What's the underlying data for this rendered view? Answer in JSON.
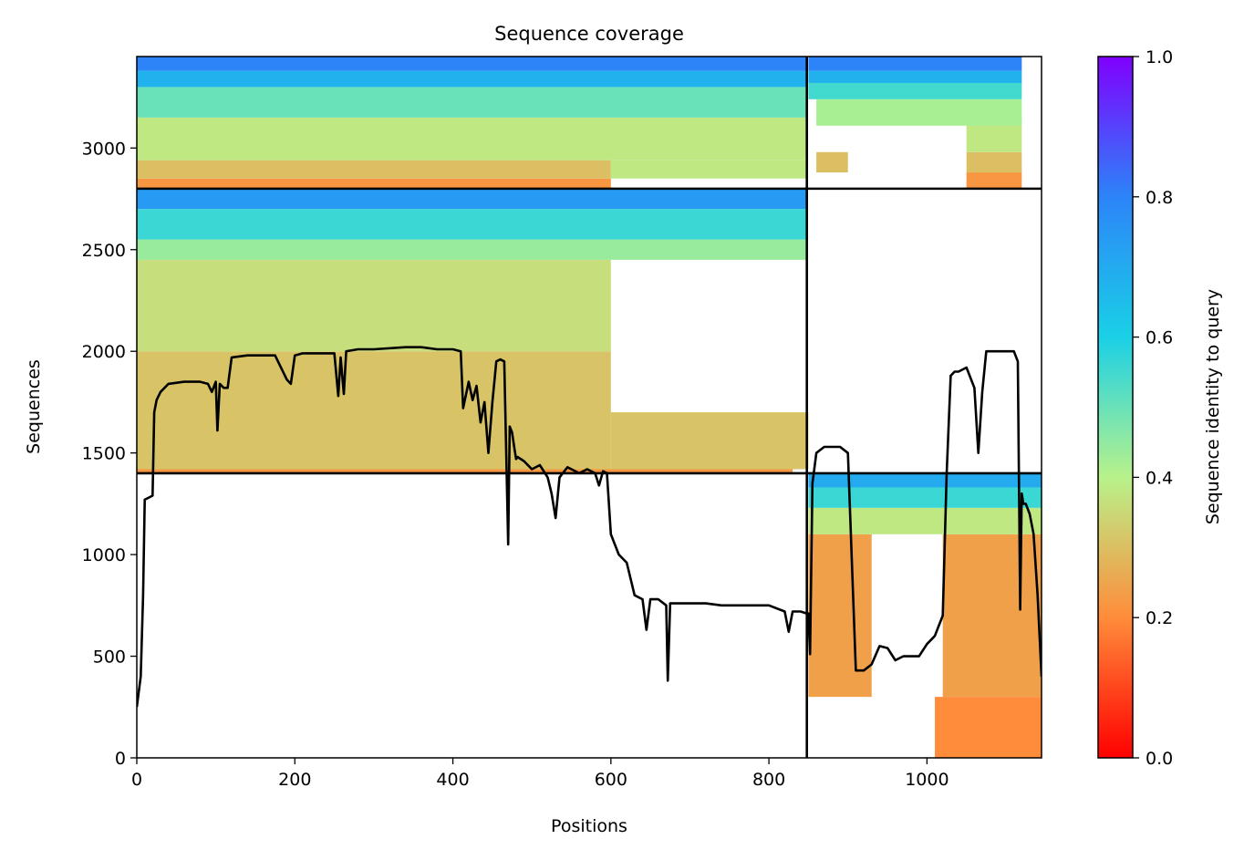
{
  "chart_data": {
    "type": "heatmap",
    "title": "Sequence coverage",
    "xlabel": "Positions",
    "ylabel": "Sequences",
    "xlim": [
      0,
      1145
    ],
    "ylim": [
      0,
      3450
    ],
    "xticks": [
      0,
      200,
      400,
      600,
      800,
      1000
    ],
    "yticks": [
      0,
      500,
      1000,
      1500,
      2000,
      2500,
      3000
    ],
    "grid": false,
    "colorbar": {
      "label": "Sequence identity to query",
      "colormap": "rainbow_r",
      "range": [
        0.0,
        1.0
      ],
      "ticks": [
        0.0,
        0.2,
        0.4,
        0.6,
        0.8,
        1.0
      ],
      "colors": [
        "#ff0000",
        "#ff8c3a",
        "#b8f28b",
        "#1ad0e6",
        "#2c84f8",
        "#8000ff"
      ]
    },
    "chain_boundaries": {
      "x": [
        848
      ],
      "y": [
        1400,
        2800
      ]
    },
    "blocks": [
      {
        "x_range": [
          0,
          848
        ],
        "y_range": [
          1400,
          2800
        ],
        "bands": [
          {
            "y": [
              1400,
              1420
            ],
            "x": [
              0,
              830
            ],
            "identity": 0.22
          },
          {
            "y": [
              1420,
              2000
            ],
            "x": [
              0,
              600
            ],
            "identity": 0.31
          },
          {
            "y": [
              1420,
              1700
            ],
            "x": [
              600,
              850
            ],
            "identity": 0.31
          },
          {
            "y": [
              2000,
              2450
            ],
            "x": [
              0,
              600
            ],
            "identity": 0.36
          },
          {
            "y": [
              2450,
              2550
            ],
            "x": [
              0,
              848
            ],
            "identity": 0.44
          },
          {
            "y": [
              2550,
              2700
            ],
            "x": [
              0,
              848
            ],
            "identity": 0.56
          },
          {
            "y": [
              2700,
              2800
            ],
            "x": [
              0,
              848
            ],
            "identity": 0.74
          }
        ]
      },
      {
        "x_range": [
          0,
          848
        ],
        "y_range": [
          2800,
          3450
        ],
        "bands": [
          {
            "y": [
              2800,
              2850
            ],
            "x": [
              0,
              600
            ],
            "identity": 0.22
          },
          {
            "y": [
              2850,
              2940
            ],
            "x": [
              0,
              600
            ],
            "identity": 0.3
          },
          {
            "y": [
              2850,
              2940
            ],
            "x": [
              600,
              848
            ],
            "identity": 0.38
          },
          {
            "y": [
              2940,
              3150
            ],
            "x": [
              0,
              848
            ],
            "identity": 0.38
          },
          {
            "y": [
              3150,
              3300
            ],
            "x": [
              0,
              848
            ],
            "identity": 0.5
          },
          {
            "y": [
              3300,
              3380
            ],
            "x": [
              0,
              848
            ],
            "identity": 0.68
          },
          {
            "y": [
              3380,
              3450
            ],
            "x": [
              0,
              848
            ],
            "identity": 0.8
          }
        ]
      },
      {
        "x_range": [
          848,
          1145
        ],
        "y_range": [
          2800,
          3450
        ],
        "bands": [
          {
            "y": [
              2800,
              2880
            ],
            "x": [
              1050,
              1120
            ],
            "identity": 0.22
          },
          {
            "y": [
              2880,
              2980
            ],
            "x": [
              860,
              900
            ],
            "identity": 0.3
          },
          {
            "y": [
              2880,
              2980
            ],
            "x": [
              1050,
              1120
            ],
            "identity": 0.3
          },
          {
            "y": [
              2980,
              3150
            ],
            "x": [
              1050,
              1120
            ],
            "identity": 0.38
          },
          {
            "y": [
              3110,
              3240
            ],
            "x": [
              860,
              1120
            ],
            "identity": 0.42
          },
          {
            "y": [
              3240,
              3320
            ],
            "x": [
              850,
              1120
            ],
            "identity": 0.55
          },
          {
            "y": [
              3320,
              3380
            ],
            "x": [
              850,
              1120
            ],
            "identity": 0.68
          },
          {
            "y": [
              3380,
              3450
            ],
            "x": [
              850,
              1120
            ],
            "identity": 0.8
          }
        ]
      },
      {
        "x_range": [
          848,
          1145
        ],
        "y_range": [
          0,
          1400
        ],
        "bands": [
          {
            "y": [
              0,
              300
            ],
            "x": [
              1010,
              1145
            ],
            "identity": 0.2
          },
          {
            "y": [
              300,
              1100
            ],
            "x": [
              850,
              930
            ],
            "identity": 0.24
          },
          {
            "y": [
              300,
              1100
            ],
            "x": [
              1020,
              1145
            ],
            "identity": 0.24
          },
          {
            "y": [
              1100,
              1230
            ],
            "x": [
              850,
              1145
            ],
            "identity": 0.38
          },
          {
            "y": [
              1230,
              1330
            ],
            "x": [
              850,
              1145
            ],
            "identity": 0.56
          },
          {
            "y": [
              1330,
              1400
            ],
            "x": [
              850,
              1145
            ],
            "identity": 0.7
          }
        ]
      }
    ],
    "coverage_line": {
      "x": [
        0,
        5,
        8,
        10,
        20,
        22,
        25,
        30,
        40,
        60,
        80,
        90,
        95,
        100,
        102,
        105,
        110,
        115,
        120,
        140,
        160,
        175,
        190,
        195,
        200,
        210,
        250,
        255,
        258,
        262,
        265,
        280,
        300,
        340,
        360,
        380,
        400,
        410,
        413,
        420,
        425,
        430,
        435,
        440,
        445,
        450,
        455,
        460,
        465,
        470,
        472,
        475,
        478,
        480,
        482,
        490,
        500,
        510,
        520,
        525,
        530,
        535,
        545,
        550,
        560,
        570,
        580,
        585,
        590,
        595,
        600,
        610,
        620,
        630,
        640,
        645,
        650,
        660,
        670,
        672,
        675,
        680,
        700,
        720,
        740,
        760,
        780,
        800,
        820,
        825,
        830,
        840,
        848,
        850,
        852,
        855,
        860,
        870,
        890,
        900,
        910,
        920,
        930,
        940,
        950,
        960,
        970,
        980,
        990,
        1000,
        1010,
        1020,
        1025,
        1030,
        1035,
        1040,
        1050,
        1060,
        1065,
        1070,
        1075,
        1080,
        1090,
        1100,
        1110,
        1115,
        1118,
        1120,
        1122,
        1125,
        1130,
        1135,
        1140,
        1145
      ],
      "y": [
        250,
        400,
        800,
        1270,
        1290,
        1700,
        1760,
        1800,
        1840,
        1850,
        1850,
        1840,
        1800,
        1850,
        1610,
        1840,
        1820,
        1820,
        1970,
        1980,
        1980,
        1980,
        1860,
        1840,
        1980,
        1990,
        1990,
        1780,
        1970,
        1790,
        2000,
        2010,
        2010,
        2020,
        2020,
        2010,
        2010,
        2000,
        1720,
        1850,
        1760,
        1830,
        1650,
        1750,
        1500,
        1750,
        1950,
        1960,
        1950,
        1050,
        1630,
        1600,
        1520,
        1470,
        1480,
        1460,
        1420,
        1440,
        1380,
        1300,
        1180,
        1380,
        1430,
        1420,
        1400,
        1420,
        1400,
        1340,
        1410,
        1400,
        1100,
        1000,
        960,
        800,
        780,
        630,
        780,
        780,
        750,
        380,
        760,
        760,
        760,
        760,
        750,
        750,
        750,
        750,
        720,
        620,
        720,
        720,
        710,
        710,
        510,
        1350,
        1500,
        1530,
        1530,
        1500,
        430,
        430,
        460,
        550,
        540,
        480,
        500,
        500,
        500,
        560,
        600,
        700,
        1400,
        1880,
        1900,
        1900,
        1920,
        1820,
        1500,
        1800,
        2000,
        2000,
        2000,
        2000,
        2000,
        1950,
        730,
        1300,
        1250,
        1250,
        1200,
        1100,
        800,
        400
      ]
    }
  }
}
